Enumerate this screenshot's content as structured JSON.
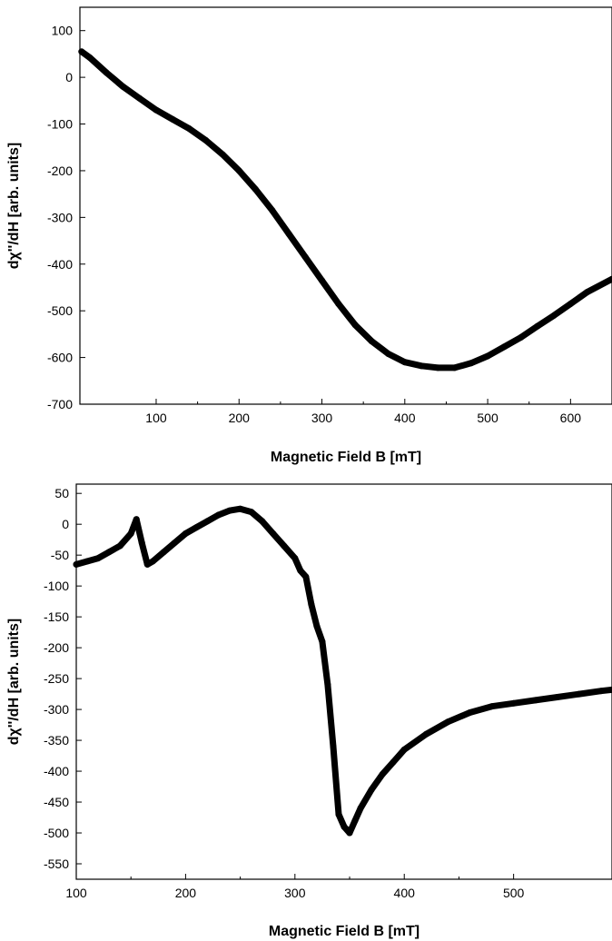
{
  "chart_data": [
    {
      "type": "line",
      "xlabel": "Magnetic Field B [mT]",
      "ylabel": "dχ''/dH [arb. units]",
      "xlim": [
        8,
        650
      ],
      "ylim": [
        -700,
        150
      ],
      "xticks": [
        100,
        200,
        300,
        400,
        500,
        600
      ],
      "yticks": [
        100,
        0,
        -100,
        -200,
        -300,
        -400,
        -500,
        -600,
        -700
      ],
      "grid": false,
      "legend": "none",
      "series": [
        {
          "color": "#000000",
          "x": [
            10,
            20,
            40,
            60,
            80,
            100,
            120,
            140,
            160,
            180,
            200,
            220,
            240,
            260,
            280,
            300,
            320,
            340,
            360,
            380,
            400,
            420,
            440,
            460,
            480,
            500,
            520,
            540,
            560,
            580,
            600,
            620,
            650
          ],
          "y": [
            55,
            42,
            10,
            -20,
            -45,
            -70,
            -90,
            -110,
            -135,
            -165,
            -200,
            -240,
            -285,
            -335,
            -385,
            -435,
            -485,
            -530,
            -565,
            -592,
            -610,
            -618,
            -622,
            -622,
            -612,
            -597,
            -577,
            -557,
            -533,
            -510,
            -485,
            -460,
            -432
          ]
        }
      ]
    },
    {
      "type": "line",
      "xlabel": "Magnetic Field B [mT]",
      "ylabel": "dχ''/dH [arb. units]",
      "xlim": [
        100,
        590
      ],
      "ylim": [
        -575,
        65
      ],
      "xticks": [
        100,
        200,
        300,
        400,
        500
      ],
      "yticks": [
        50,
        0,
        -50,
        -100,
        -150,
        -200,
        -250,
        -300,
        -350,
        -400,
        -450,
        -500,
        -550
      ],
      "grid": false,
      "legend": "none",
      "series": [
        {
          "color": "#000000",
          "x": [
            100,
            110,
            120,
            130,
            140,
            150,
            155,
            160,
            165,
            170,
            180,
            190,
            200,
            210,
            220,
            230,
            240,
            250,
            260,
            270,
            280,
            290,
            300,
            305,
            310,
            315,
            320,
            325,
            330,
            335,
            340,
            345,
            350,
            355,
            360,
            370,
            380,
            390,
            400,
            420,
            440,
            460,
            480,
            500,
            520,
            540,
            560,
            580,
            590
          ],
          "y": [
            -65,
            -60,
            -55,
            -45,
            -35,
            -15,
            8,
            -30,
            -65,
            -60,
            -45,
            -30,
            -15,
            -5,
            5,
            15,
            22,
            25,
            20,
            5,
            -15,
            -35,
            -55,
            -75,
            -85,
            -130,
            -165,
            -190,
            -260,
            -360,
            -470,
            -490,
            -500,
            -480,
            -460,
            -430,
            -405,
            -385,
            -365,
            -340,
            -320,
            -305,
            -295,
            -290,
            -285,
            -280,
            -275,
            -270,
            -268
          ]
        }
      ]
    }
  ]
}
